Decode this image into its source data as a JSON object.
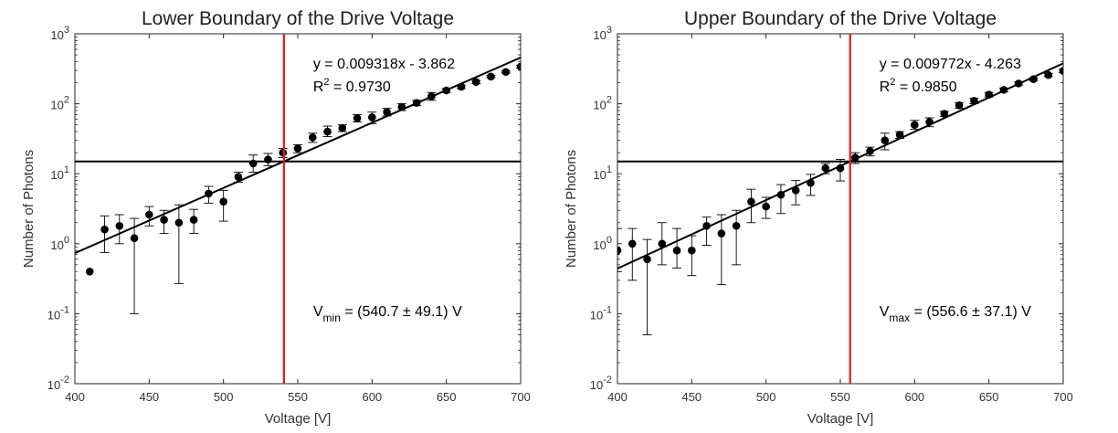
{
  "chart_data": [
    {
      "type": "scatter",
      "title": "Lower Boundary of the Drive Voltage",
      "xlabel": "Voltage [V]",
      "ylabel": "Number of Photons",
      "xlim": [
        400,
        700
      ],
      "ylim": [
        0.01,
        1000
      ],
      "yscale": "log",
      "xticks": [
        "400",
        "450",
        "500",
        "550",
        "600",
        "650",
        "700"
      ],
      "yticks": [
        {
          "base": "10",
          "exp": "-2"
        },
        {
          "base": "10",
          "exp": "-1"
        },
        {
          "base": "10",
          "exp": "0"
        },
        {
          "base": "10",
          "exp": "1"
        },
        {
          "base": "10",
          "exp": "2"
        },
        {
          "base": "10",
          "exp": "3"
        }
      ],
      "points": [
        {
          "x": 410,
          "y": 0.4,
          "lo": 0.4,
          "hi": 0.4
        },
        {
          "x": 420,
          "y": 1.6,
          "lo": 0.75,
          "hi": 2.5
        },
        {
          "x": 430,
          "y": 1.8,
          "lo": 1.0,
          "hi": 2.6
        },
        {
          "x": 440,
          "y": 1.2,
          "lo": 0.1,
          "hi": 2.3
        },
        {
          "x": 450,
          "y": 2.6,
          "lo": 1.8,
          "hi": 3.4
        },
        {
          "x": 460,
          "y": 2.2,
          "lo": 1.4,
          "hi": 3.0
        },
        {
          "x": 470,
          "y": 2.0,
          "lo": 0.27,
          "hi": 3.6
        },
        {
          "x": 480,
          "y": 2.2,
          "lo": 1.4,
          "hi": 3.1
        },
        {
          "x": 490,
          "y": 5.2,
          "lo": 3.8,
          "hi": 6.6
        },
        {
          "x": 500,
          "y": 4.0,
          "lo": 2.1,
          "hi": 5.8
        },
        {
          "x": 510,
          "y": 9.0,
          "lo": 7.6,
          "hi": 10.5
        },
        {
          "x": 520,
          "y": 14.0,
          "lo": 10.5,
          "hi": 18.5
        },
        {
          "x": 530,
          "y": 16.0,
          "lo": 13.0,
          "hi": 19.5
        },
        {
          "x": 540,
          "y": 20.0,
          "lo": 17.0,
          "hi": 23.0
        },
        {
          "x": 550,
          "y": 23.0,
          "lo": 20.0,
          "hi": 26.0
        },
        {
          "x": 560,
          "y": 33.0,
          "lo": 28.0,
          "hi": 38.0
        },
        {
          "x": 570,
          "y": 40.0,
          "lo": 34.0,
          "hi": 48.0
        },
        {
          "x": 580,
          "y": 45.0,
          "lo": 40.0,
          "hi": 50.0
        },
        {
          "x": 590,
          "y": 62.0,
          "lo": 55.0,
          "hi": 70.0
        },
        {
          "x": 600,
          "y": 64.0,
          "lo": 52.0,
          "hi": 76.0
        },
        {
          "x": 610,
          "y": 76.0,
          "lo": 67.0,
          "hi": 86.0
        },
        {
          "x": 620,
          "y": 90.0,
          "lo": 80.0,
          "hi": 100.0
        },
        {
          "x": 630,
          "y": 103.0,
          "lo": 94.0,
          "hi": 112.0
        },
        {
          "x": 640,
          "y": 128.0,
          "lo": 112.0,
          "hi": 145.0
        },
        {
          "x": 650,
          "y": 155.0,
          "lo": 145.0,
          "hi": 165.0
        },
        {
          "x": 660,
          "y": 175.0,
          "lo": 165.0,
          "hi": 185.0
        },
        {
          "x": 670,
          "y": 205.0,
          "lo": 195.0,
          "hi": 215.0
        },
        {
          "x": 680,
          "y": 245.0,
          "lo": 235.0,
          "hi": 255.0
        },
        {
          "x": 690,
          "y": 285.0,
          "lo": 275.0,
          "hi": 295.0
        },
        {
          "x": 700,
          "y": 340.0,
          "lo": 325.0,
          "hi": 355.0
        }
      ],
      "fit_line": {
        "slope": 0.009318,
        "intercept": -3.862,
        "base": 10
      },
      "fit_equation": "y = 0.009318x - 3.862",
      "r2_prefix": "R",
      "r2_sup": "2",
      "r2_value": " = 0.9730",
      "threshold_y": 15,
      "threshold_x": 540.7,
      "v_label_main": "V",
      "v_label_sub": "min",
      "v_label_value": " = (540.7 ± 49.1) V",
      "colors": {
        "points": "#000000",
        "fit": "#000000",
        "vline": "#e01b1b",
        "hline": "#000000"
      },
      "grid": false
    },
    {
      "type": "scatter",
      "title": "Upper Boundary of the Drive Voltage",
      "xlabel": "Voltage [V]",
      "ylabel": "Number of Photons",
      "xlim": [
        400,
        700
      ],
      "ylim": [
        0.01,
        1000
      ],
      "yscale": "log",
      "xticks": [
        "400",
        "450",
        "500",
        "550",
        "600",
        "650",
        "700"
      ],
      "yticks": [
        {
          "base": "10",
          "exp": "-2"
        },
        {
          "base": "10",
          "exp": "-1"
        },
        {
          "base": "10",
          "exp": "0"
        },
        {
          "base": "10",
          "exp": "1"
        },
        {
          "base": "10",
          "exp": "2"
        },
        {
          "base": "10",
          "exp": "3"
        }
      ],
      "points": [
        {
          "x": 400,
          "y": 0.8,
          "lo": 0.4,
          "hi": 1.65
        },
        {
          "x": 410,
          "y": 1.0,
          "lo": 0.3,
          "hi": 1.65
        },
        {
          "x": 420,
          "y": 0.6,
          "lo": 0.05,
          "hi": 1.15
        },
        {
          "x": 430,
          "y": 1.0,
          "lo": 0.5,
          "hi": 2.0
        },
        {
          "x": 440,
          "y": 0.8,
          "lo": 0.45,
          "hi": 1.65
        },
        {
          "x": 450,
          "y": 0.8,
          "lo": 0.35,
          "hi": 1.3
        },
        {
          "x": 460,
          "y": 1.8,
          "lo": 0.95,
          "hi": 2.4
        },
        {
          "x": 470,
          "y": 1.4,
          "lo": 0.26,
          "hi": 2.6
        },
        {
          "x": 480,
          "y": 1.8,
          "lo": 0.5,
          "hi": 3.0
        },
        {
          "x": 490,
          "y": 4.0,
          "lo": 2.0,
          "hi": 6.0
        },
        {
          "x": 500,
          "y": 3.4,
          "lo": 2.3,
          "hi": 4.6
        },
        {
          "x": 510,
          "y": 5.0,
          "lo": 2.7,
          "hi": 7.0
        },
        {
          "x": 520,
          "y": 5.8,
          "lo": 3.6,
          "hi": 8.0
        },
        {
          "x": 530,
          "y": 7.4,
          "lo": 4.9,
          "hi": 9.8
        },
        {
          "x": 540,
          "y": 12.0,
          "lo": 10.0,
          "hi": 14.0
        },
        {
          "x": 550,
          "y": 12.0,
          "lo": 7.9,
          "hi": 16.0
        },
        {
          "x": 560,
          "y": 17.0,
          "lo": 14.0,
          "hi": 20.0
        },
        {
          "x": 570,
          "y": 21.0,
          "lo": 18.0,
          "hi": 24.0
        },
        {
          "x": 580,
          "y": 30.0,
          "lo": 22.0,
          "hi": 38.0
        },
        {
          "x": 590,
          "y": 36.0,
          "lo": 32.0,
          "hi": 40.0
        },
        {
          "x": 600,
          "y": 50.0,
          "lo": 43.0,
          "hi": 58.0
        },
        {
          "x": 610,
          "y": 55.0,
          "lo": 47.0,
          "hi": 63.0
        },
        {
          "x": 620,
          "y": 72.0,
          "lo": 66.0,
          "hi": 78.0
        },
        {
          "x": 630,
          "y": 95.0,
          "lo": 86.0,
          "hi": 104.0
        },
        {
          "x": 640,
          "y": 110.0,
          "lo": 100.0,
          "hi": 120.0
        },
        {
          "x": 650,
          "y": 135.0,
          "lo": 125.0,
          "hi": 145.0
        },
        {
          "x": 660,
          "y": 158.0,
          "lo": 148.0,
          "hi": 168.0
        },
        {
          "x": 670,
          "y": 195.0,
          "lo": 185.0,
          "hi": 205.0
        },
        {
          "x": 680,
          "y": 225.0,
          "lo": 215.0,
          "hi": 235.0
        },
        {
          "x": 690,
          "y": 258.0,
          "lo": 245.0,
          "hi": 270.0
        },
        {
          "x": 700,
          "y": 295.0,
          "lo": 280.0,
          "hi": 310.0
        }
      ],
      "fit_line": {
        "slope": 0.009772,
        "intercept": -4.263,
        "base": 10
      },
      "fit_equation": "y = 0.009772x - 4.263",
      "r2_prefix": "R",
      "r2_sup": "2",
      "r2_value": " = 0.9850",
      "threshold_y": 15,
      "threshold_x": 556.6,
      "v_label_main": "V",
      "v_label_sub": "max",
      "v_label_value": " = (556.6 ± 37.1) V",
      "colors": {
        "points": "#000000",
        "fit": "#000000",
        "vline": "#e01b1b",
        "hline": "#000000"
      },
      "grid": false
    }
  ]
}
